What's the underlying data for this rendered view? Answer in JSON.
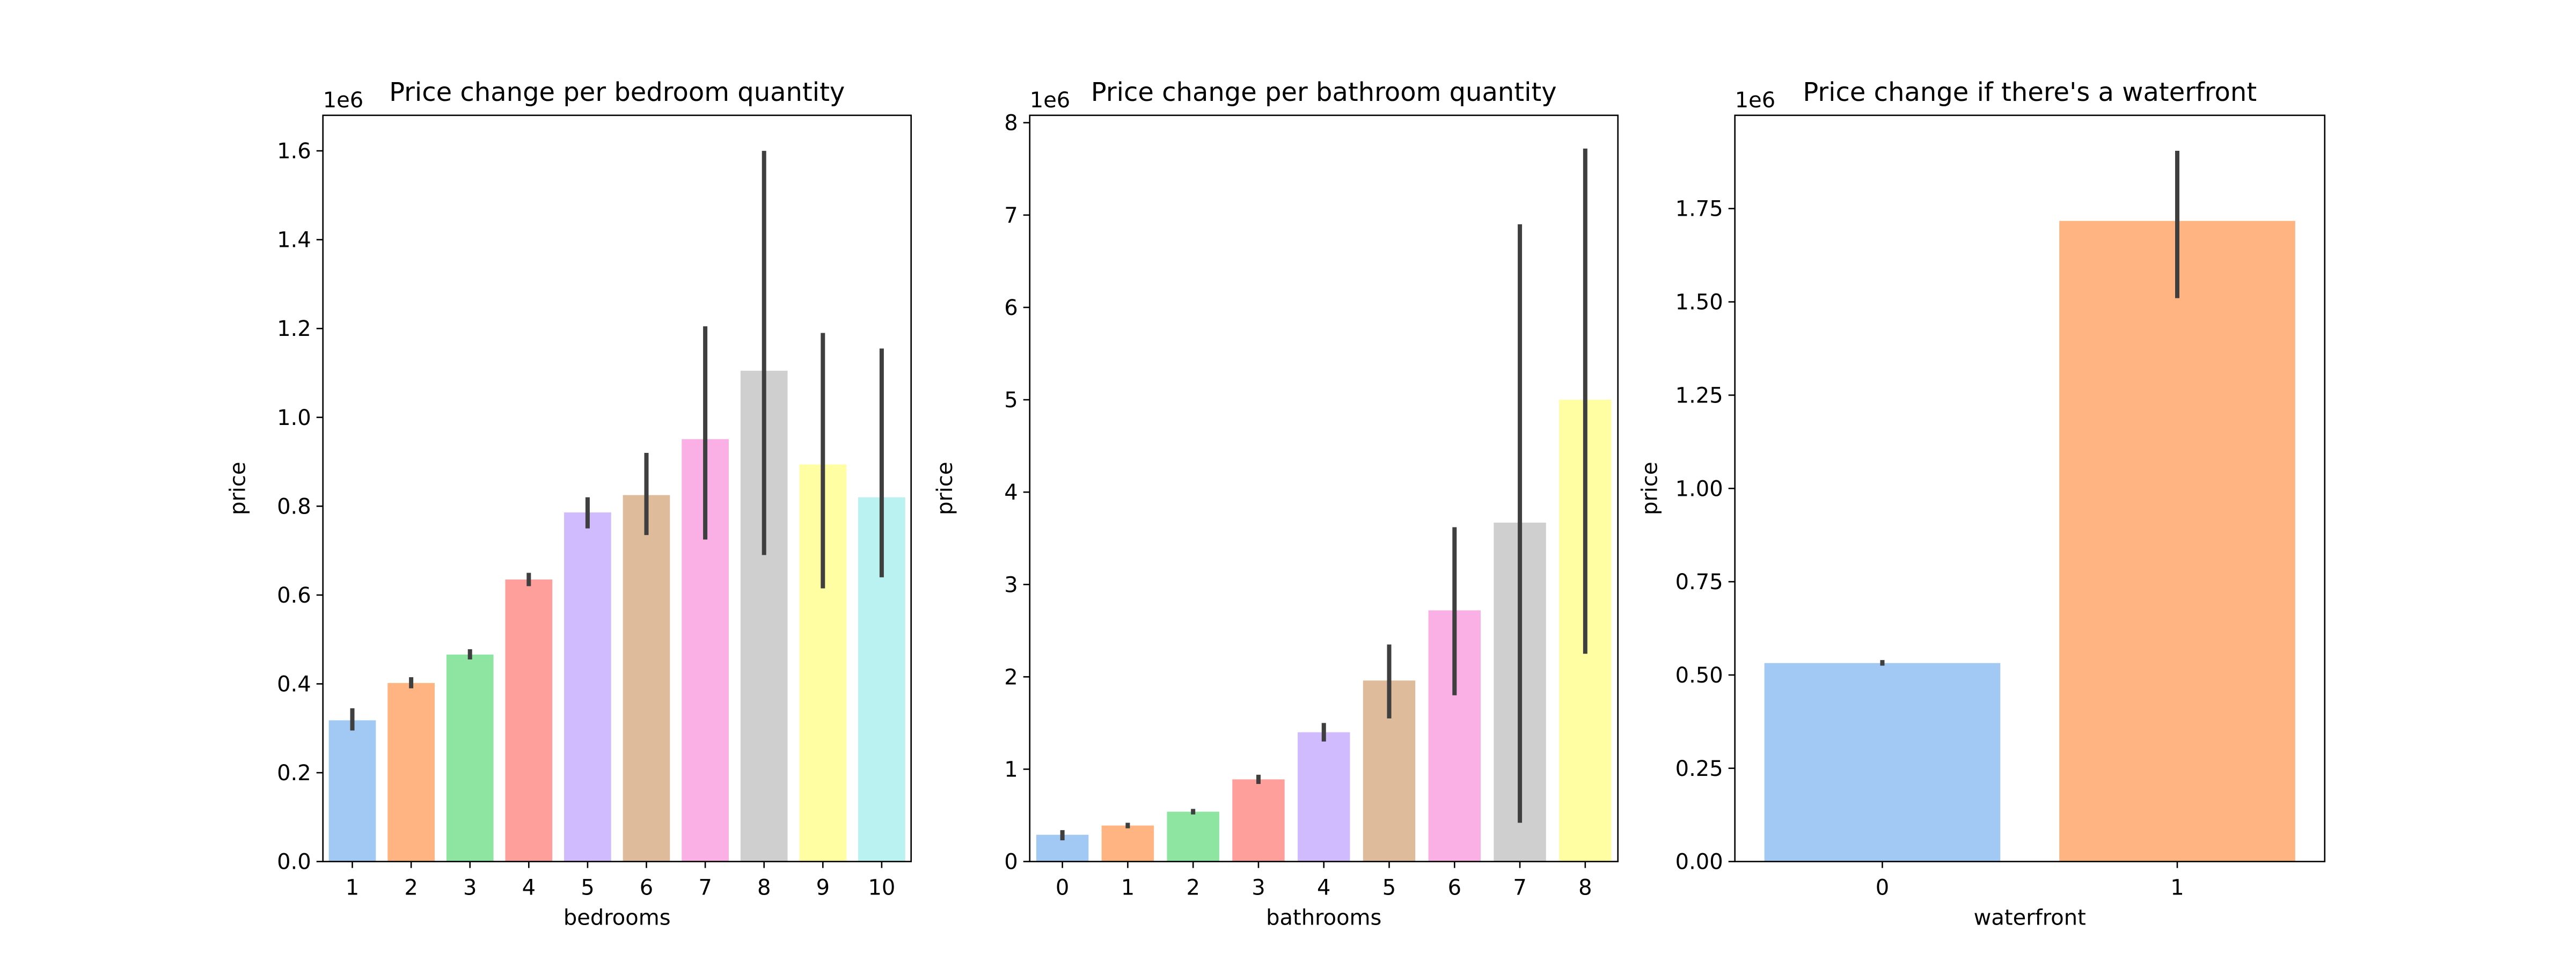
{
  "palette": [
    "#a1c9f4",
    "#ffb482",
    "#8de5a1",
    "#ff9f9b",
    "#d0bbff",
    "#debb9b",
    "#fab0e4",
    "#cfcfcf",
    "#fffea3",
    "#b9f2f0"
  ],
  "error_bar_color": "#3f3f3f",
  "chart_data": [
    {
      "type": "bar",
      "title": "Price change per bedroom quantity",
      "xlabel": "bedrooms",
      "ylabel": "price",
      "offset_label": "1e6",
      "categories": [
        "1",
        "2",
        "3",
        "4",
        "5",
        "6",
        "7",
        "8",
        "9",
        "10"
      ],
      "values": [
        0.318,
        0.402,
        0.466,
        0.635,
        0.786,
        0.825,
        0.951,
        1.105,
        0.894,
        0.82
      ],
      "ci_low": [
        0.295,
        0.39,
        0.455,
        0.62,
        0.75,
        0.735,
        0.725,
        0.69,
        0.615,
        0.64
      ],
      "ci_high": [
        0.345,
        0.415,
        0.478,
        0.65,
        0.82,
        0.92,
        1.205,
        1.6,
        1.19,
        1.155
      ],
      "yticks": [
        "0.0",
        "0.2",
        "0.4",
        "0.6",
        "0.8",
        "1.0",
        "1.2",
        "1.4",
        "1.6"
      ],
      "ylim": [
        0,
        1.68
      ],
      "grid": false,
      "legend": "none"
    },
    {
      "type": "bar",
      "title": "Price change per bathroom quantity",
      "xlabel": "bathrooms",
      "ylabel": "price",
      "offset_label": "1e6",
      "categories": [
        "0",
        "1",
        "2",
        "3",
        "4",
        "5",
        "6",
        "7",
        "8"
      ],
      "values": [
        0.29,
        0.39,
        0.54,
        0.89,
        1.4,
        1.96,
        2.72,
        3.67,
        5.0
      ],
      "ci_low": [
        0.23,
        0.36,
        0.51,
        0.84,
        1.3,
        1.55,
        1.8,
        0.42,
        2.25
      ],
      "ci_high": [
        0.34,
        0.42,
        0.57,
        0.94,
        1.5,
        2.35,
        3.62,
        6.9,
        7.72
      ],
      "yticks": [
        "0",
        "1",
        "2",
        "3",
        "4",
        "5",
        "6",
        "7",
        "8"
      ],
      "ylim": [
        0,
        8.08
      ],
      "grid": false,
      "legend": "none"
    },
    {
      "type": "bar",
      "title": "Price change if there's a waterfront",
      "xlabel": "waterfront",
      "ylabel": "price",
      "offset_label": "1e6",
      "categories": [
        "0",
        "1"
      ],
      "values": [
        0.532,
        1.717
      ],
      "ci_low": [
        0.525,
        1.51
      ],
      "ci_high": [
        0.54,
        1.905
      ],
      "yticks": [
        "0.00",
        "0.25",
        "0.50",
        "0.75",
        "1.00",
        "1.25",
        "1.50",
        "1.75"
      ],
      "ylim": [
        0,
        2.0
      ],
      "grid": false,
      "legend": "none"
    }
  ]
}
